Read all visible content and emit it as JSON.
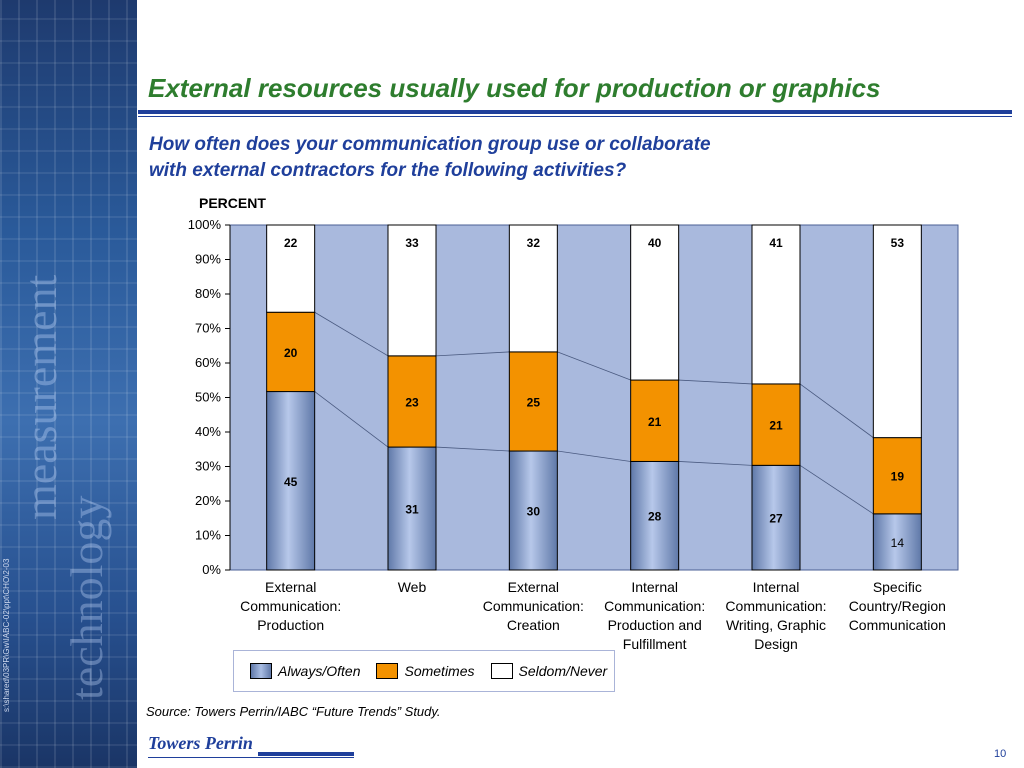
{
  "slide": {
    "title": "External resources usually used for production or graphics",
    "question_line1": "How often does your communication group use or collaborate",
    "question_line2": "with external contractors for the following activities?",
    "unit_label": "PERCENT",
    "source": "Source: Towers Perrin/IABC “Future Trends” Study.",
    "logo_text": "Towers Perrin",
    "file_path": "s:\\shared\\03PR\\Gw\\IABC-02\\ppt\\CHO\\2-03",
    "page_number": "10"
  },
  "colors": {
    "title": "#2e7d2e",
    "accent": "#1f3f9b",
    "plot_bg": "#a9b9dd",
    "always": "#8fa6d1",
    "sometimes": "#f39200",
    "seldom": "#ffffff"
  },
  "chart_data": {
    "type": "bar",
    "stacked": true,
    "categories": [
      [
        "External",
        "Communication:",
        "Production"
      ],
      [
        "Web"
      ],
      [
        "External",
        "Communication:",
        "Creation"
      ],
      [
        "Internal",
        "Communication:",
        "Production and",
        "Fulfillment"
      ],
      [
        "Internal",
        "Communication:",
        "Writing, Graphic",
        "Design"
      ],
      [
        "Specific",
        "Country/Region",
        "Communication"
      ]
    ],
    "series": [
      {
        "name": "Always/Often",
        "values": [
          45,
          31,
          30,
          28,
          27,
          14
        ],
        "color": "#8fa6d1"
      },
      {
        "name": "Sometimes",
        "values": [
          20,
          23,
          25,
          21,
          21,
          19
        ],
        "color": "#f39200"
      },
      {
        "name": "Seldom/Never",
        "values": [
          22,
          33,
          32,
          40,
          41,
          53
        ],
        "color": "#ffffff"
      }
    ],
    "ylabel": "PERCENT",
    "ylim": [
      0,
      100
    ],
    "yticks": [
      "0%",
      "10%",
      "20%",
      "30%",
      "40%",
      "50%",
      "60%",
      "70%",
      "80%",
      "90%",
      "100%"
    ],
    "normalized_to_100": true,
    "connector_lines": true,
    "legend_position": "bottom"
  }
}
